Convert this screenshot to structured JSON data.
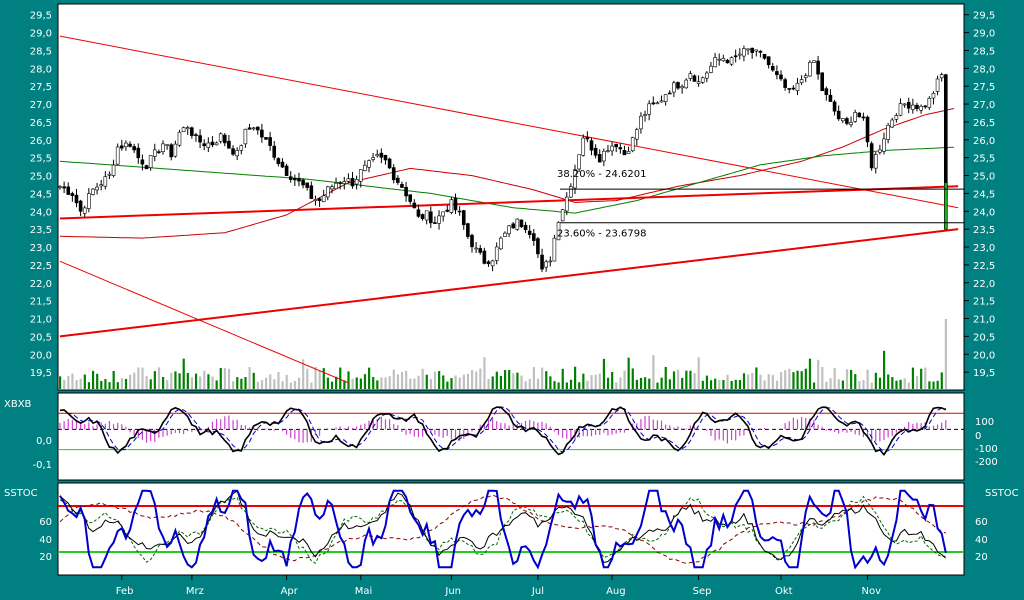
{
  "colors": {
    "frame": "#008080",
    "panel": "#ffffff",
    "candle_up": "#ffffff",
    "candle_down": "#000000",
    "bar_shadow": "#aaaaaa",
    "volume_up": "#008000",
    "volume_down": "#c0c0c0",
    "trendline": "#ee0000",
    "ma_short": "#cc0000",
    "ma_long": "#008000",
    "hist": "#cc44cc",
    "stoch_main": "#0000cc",
    "stoch_signal": "#006600",
    "band_high": "#ee0000",
    "band_low": "#22cc22"
  },
  "chart_data": [
    {
      "id": "price",
      "type": "candlestick",
      "ylim": [
        19.0,
        29.8
      ],
      "y_ticks": [
        "19,5",
        "20,0",
        "20,5",
        "21,0",
        "21,5",
        "22,0",
        "22,5",
        "23,0",
        "23,5",
        "24,0",
        "24,5",
        "25,0",
        "25,5",
        "26,0",
        "26,5",
        "27,0",
        "27,5",
        "28,0",
        "28,5",
        "29,0",
        "29,5"
      ],
      "x_ticks": [
        "Feb",
        "Mrz",
        "Apr",
        "Mai",
        "Jun",
        "Jul",
        "Aug",
        "Sep",
        "Okt",
        "Nov"
      ],
      "close_anchors": [
        [
          0,
          24.7
        ],
        [
          3,
          24.5
        ],
        [
          5,
          24.0
        ],
        [
          8,
          24.6
        ],
        [
          10,
          24.8
        ],
        [
          12,
          25.0
        ],
        [
          14,
          25.8
        ],
        [
          17,
          25.9
        ],
        [
          19,
          25.5
        ],
        [
          21,
          25.3
        ],
        [
          23,
          25.6
        ],
        [
          25,
          25.9
        ],
        [
          27,
          25.6
        ],
        [
          29,
          26.2
        ],
        [
          31,
          26.4
        ],
        [
          33,
          26.0
        ],
        [
          35,
          25.9
        ],
        [
          37,
          25.9
        ],
        [
          39,
          26.1
        ],
        [
          41,
          25.8
        ],
        [
          43,
          25.6
        ],
        [
          45,
          26.2
        ],
        [
          47,
          26.4
        ],
        [
          49,
          26.1
        ],
        [
          51,
          25.8
        ],
        [
          53,
          25.4
        ],
        [
          55,
          25.1
        ],
        [
          57,
          24.9
        ],
        [
          59,
          24.7
        ],
        [
          61,
          24.4
        ],
        [
          63,
          24.3
        ],
        [
          65,
          24.6
        ],
        [
          67,
          24.8
        ],
        [
          69,
          24.9
        ],
        [
          71,
          24.8
        ],
        [
          73,
          25.1
        ],
        [
          75,
          25.3
        ],
        [
          77,
          25.5
        ],
        [
          79,
          25.4
        ],
        [
          81,
          25.0
        ],
        [
          83,
          24.7
        ],
        [
          85,
          24.3
        ],
        [
          87,
          23.8
        ],
        [
          89,
          23.9
        ],
        [
          91,
          23.7
        ],
        [
          93,
          24.0
        ],
        [
          95,
          24.2
        ],
        [
          97,
          23.9
        ],
        [
          99,
          23.3
        ],
        [
          101,
          22.9
        ],
        [
          103,
          22.6
        ],
        [
          105,
          22.7
        ],
        [
          107,
          23.2
        ],
        [
          109,
          23.5
        ],
        [
          111,
          23.7
        ],
        [
          113,
          23.6
        ],
        [
          115,
          23.3
        ],
        [
          117,
          22.3
        ],
        [
          119,
          22.7
        ],
        [
          121,
          23.8
        ],
        [
          123,
          24.4
        ],
        [
          125,
          25.2
        ],
        [
          127,
          26.1
        ],
        [
          129,
          25.8
        ],
        [
          131,
          25.5
        ],
        [
          133,
          25.8
        ],
        [
          135,
          25.9
        ],
        [
          137,
          25.6
        ],
        [
          139,
          26.0
        ],
        [
          141,
          26.6
        ],
        [
          143,
          26.9
        ],
        [
          145,
          27.0
        ],
        [
          147,
          27.3
        ],
        [
          149,
          27.5
        ],
        [
          151,
          27.6
        ],
        [
          153,
          27.9
        ],
        [
          155,
          27.6
        ],
        [
          157,
          27.9
        ],
        [
          159,
          28.2
        ],
        [
          161,
          28.3
        ],
        [
          163,
          28.2
        ],
        [
          165,
          28.4
        ],
        [
          167,
          28.5
        ],
        [
          169,
          28.4
        ],
        [
          171,
          28.3
        ],
        [
          173,
          27.9
        ],
        [
          175,
          27.6
        ],
        [
          177,
          27.3
        ],
        [
          179,
          27.5
        ],
        [
          181,
          27.9
        ],
        [
          183,
          28.2
        ],
        [
          185,
          27.4
        ],
        [
          187,
          27.0
        ],
        [
          189,
          26.6
        ],
        [
          191,
          26.4
        ],
        [
          193,
          26.8
        ],
        [
          195,
          26.5
        ],
        [
          197,
          25.3
        ],
        [
          199,
          25.8
        ],
        [
          201,
          26.4
        ],
        [
          203,
          26.8
        ],
        [
          205,
          27.0
        ],
        [
          207,
          27.0
        ],
        [
          209,
          26.9
        ],
        [
          211,
          27.1
        ],
        [
          213,
          27.6
        ],
        [
          214,
          27.8
        ],
        [
          215,
          24.4
        ]
      ],
      "trendlines": [
        {
          "from": [
            0,
            28.9
          ],
          "to": [
            218,
            24.1
          ]
        },
        {
          "from": [
            0,
            22.6
          ],
          "to": [
            70,
            19.2
          ]
        },
        {
          "from": [
            0,
            23.8
          ],
          "to": [
            218,
            24.7
          ]
        },
        {
          "from": [
            0,
            20.5
          ],
          "to": [
            218,
            23.5
          ]
        }
      ],
      "fib_levels": [
        {
          "label": "38.20% - 24.6201",
          "value": 24.62
        },
        {
          "label": "23.60% - 23.6798",
          "value": 23.68
        }
      ],
      "ma_short_anchors": [
        [
          0,
          23.3
        ],
        [
          20,
          23.25
        ],
        [
          40,
          23.4
        ],
        [
          55,
          23.9
        ],
        [
          70,
          24.8
        ],
        [
          85,
          25.2
        ],
        [
          100,
          25.0
        ],
        [
          115,
          24.6
        ],
        [
          125,
          24.25
        ],
        [
          135,
          24.3
        ],
        [
          150,
          24.7
        ],
        [
          165,
          25.0
        ],
        [
          180,
          25.4
        ],
        [
          190,
          25.8
        ],
        [
          200,
          26.3
        ],
        [
          210,
          26.7
        ],
        [
          218,
          26.9
        ]
      ],
      "ma_long_anchors": [
        [
          0,
          25.4
        ],
        [
          30,
          25.15
        ],
        [
          60,
          24.9
        ],
        [
          90,
          24.5
        ],
        [
          110,
          24.1
        ],
        [
          125,
          23.95
        ],
        [
          140,
          24.3
        ],
        [
          155,
          24.8
        ],
        [
          170,
          25.3
        ],
        [
          185,
          25.55
        ],
        [
          200,
          25.7
        ],
        [
          218,
          25.8
        ]
      ],
      "volume_max": 22
    },
    {
      "id": "xbxb",
      "type": "line",
      "name": "XBXB",
      "left_ticks": [
        "0,0",
        "-0,1"
      ],
      "right_ticks": [
        "100",
        "0",
        "-100",
        "-200"
      ],
      "ylim": [
        -250,
        180
      ],
      "upper_band": 80,
      "lower_band": -100
    },
    {
      "id": "sstoc",
      "type": "line",
      "name": "SSTOC",
      "left_ticks": [
        "60",
        "40",
        "20"
      ],
      "right_ticks": [
        "60",
        "40",
        "20"
      ],
      "ylim": [
        -10,
        110
      ],
      "upper_band": 80,
      "lower_band": 20
    }
  ]
}
